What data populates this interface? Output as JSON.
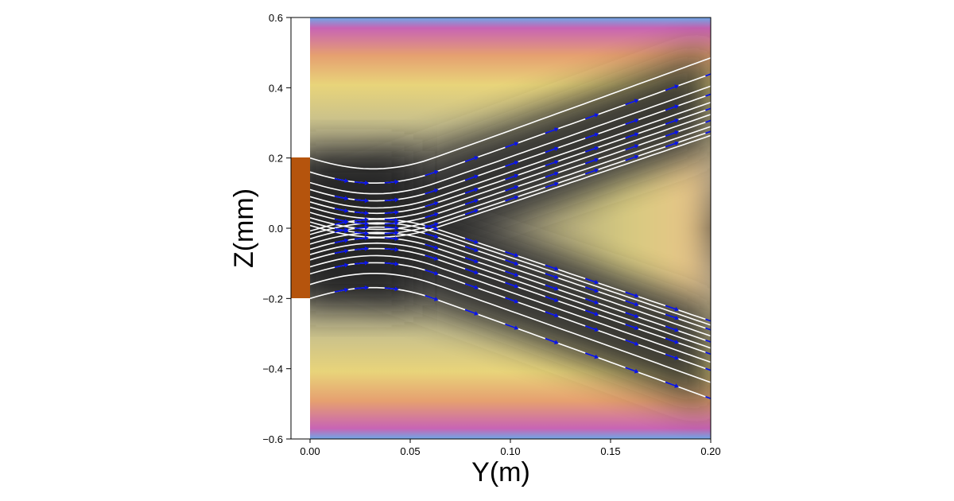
{
  "chart_data": {
    "type": "field-plot",
    "title": "",
    "xlabel": "Y(m)",
    "ylabel": "Z(mm)",
    "xlim": [
      0.0,
      0.2
    ],
    "ylim": [
      -0.6,
      0.6
    ],
    "x_ticks": [
      {
        "value": 0.0,
        "label": "0.00"
      },
      {
        "value": 0.05,
        "label": "0.05"
      },
      {
        "value": 0.1,
        "label": "0.10"
      },
      {
        "value": 0.15,
        "label": "0.15"
      },
      {
        "value": 0.2,
        "label": "0.20"
      }
    ],
    "y_ticks": [
      {
        "value": 0.6,
        "label": "0.6"
      },
      {
        "value": 0.4,
        "label": "0.4"
      },
      {
        "value": 0.2,
        "label": "0.2"
      },
      {
        "value": 0.0,
        "label": "0.0"
      },
      {
        "value": -0.2,
        "label": "−0.2"
      },
      {
        "value": -0.4,
        "label": "−0.4"
      },
      {
        "value": -0.6,
        "label": "−0.6"
      }
    ],
    "source_block": {
      "z_min": -0.2,
      "z_max": 0.2,
      "color": "#b5540d"
    },
    "background": "density colormap: dark gray along diverging beams, yellow/pink/blue outside",
    "streamline_start_z": [
      -0.2,
      -0.16,
      -0.13,
      -0.11,
      -0.09,
      -0.075,
      -0.06,
      -0.045,
      -0.03,
      -0.018,
      -0.008,
      0.008,
      0.018,
      0.03,
      0.045,
      0.06,
      0.075,
      0.09,
      0.11,
      0.13,
      0.16,
      0.2
    ],
    "beam_center_z_at_x_max": 0.37,
    "arrow_columns_y": [
      0.015,
      0.025,
      0.04,
      0.06,
      0.08,
      0.1,
      0.12,
      0.14,
      0.16,
      0.18,
      0.2
    ],
    "colors": {
      "streamline": "#ffffff",
      "arrows": "#0a14e6",
      "beam": "#2a2a2a"
    }
  }
}
